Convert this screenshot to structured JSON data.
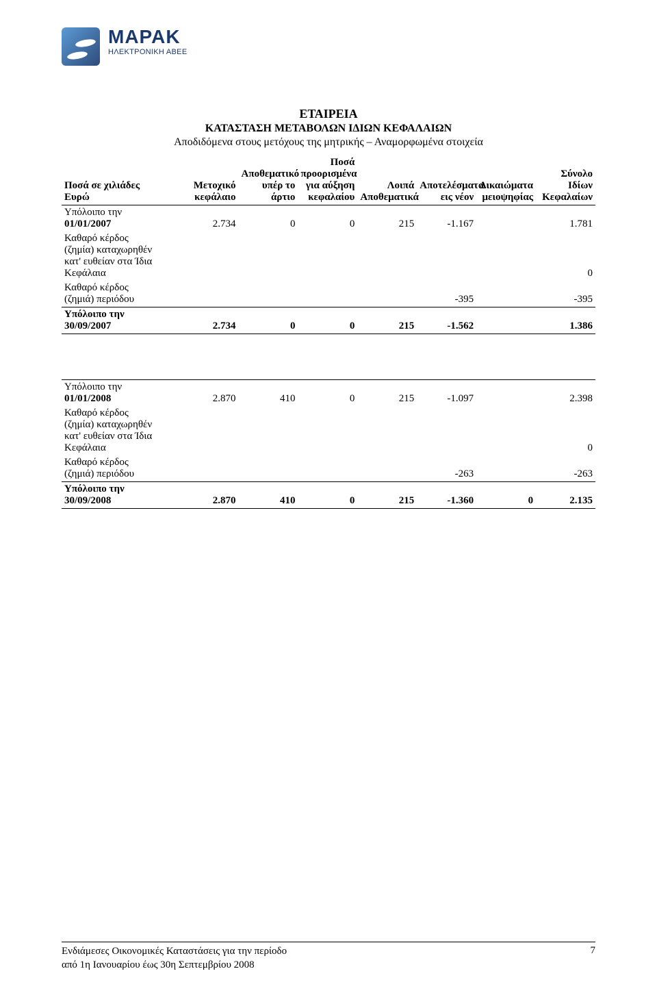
{
  "brand": {
    "title": "ΜΑΡΑΚ",
    "subtitle": "ΗΛΕΚΤΡΟΝΙΚΗ ΑΒΕΕ"
  },
  "doc": {
    "title": "ΕΤΑΙΡΕΙΑ",
    "subtitle": "ΚΑΤΑΣΤΑΣΗ ΜΕΤΑΒΟΛΩΝ ΙΔΙΩΝ ΚΕΦΑΛΑΙΩΝ",
    "subtitle2": "Αποδιδόμενα στους μετόχους της μητρικής – Αναμορφωμένα στοιχεία"
  },
  "columns": {
    "c0a": "Ποσά σε χιλιάδες",
    "c0b": "Ευρώ",
    "c1a": "Μετοχικό",
    "c1b": "κεφάλαιο",
    "c2a": "Αποθεματικό",
    "c2b": "υπέρ το",
    "c2c": "άρτιο",
    "c3a": "Ποσά",
    "c3b": "προορισμένα",
    "c3c": "για αύξηση",
    "c3d": "κεφαλαίου",
    "c4a": "Λοιπά",
    "c4b": "Αποθεματικά",
    "c5a": "Αποτελέσματα",
    "c5b": "εις νέον",
    "c6a": "Δικαιώματα",
    "c6b": "μειοψηφίας",
    "c7a": "Σύνολο",
    "c7b": "Ιδίων",
    "c7c": "Κεφαλαίων"
  },
  "section1": {
    "r1_label_a": "Υπόλοιπο την",
    "r1_label_b": "01/01/2007",
    "r1": {
      "c1": "2.734",
      "c2": "0",
      "c3": "0",
      "c4": "215",
      "c5": "-1.167",
      "c6": "",
      "c7": "1.781"
    },
    "r2_label_a": "Καθαρό κέρδος",
    "r2_label_b": "(ζημία) καταχωρηθέν",
    "r2_label_c": "κατ' ευθείαν στα Ίδια",
    "r2_label_d": "Κεφάλαια",
    "r2": {
      "c7": "0"
    },
    "r3_label_a": "Καθαρό κέρδος",
    "r3_label_b": "(ζημιά) περιόδου",
    "r3": {
      "c5": "-395",
      "c7": "-395"
    },
    "r4_label_a": "Υπόλοιπο την",
    "r4_label_b": "30/09/2007",
    "r4": {
      "c1": "2.734",
      "c2": "0",
      "c3": "0",
      "c4": "215",
      "c5": "-1.562",
      "c6": "",
      "c7": "1.386"
    }
  },
  "section2": {
    "r1_label_a": "Υπόλοιπο την",
    "r1_label_b": "01/01/2008",
    "r1": {
      "c1": "2.870",
      "c2": "410",
      "c3": "0",
      "c4": "215",
      "c5": "-1.097",
      "c6": "",
      "c7": "2.398"
    },
    "r2_label_a": "Καθαρό κέρδος",
    "r2_label_b": "(ζημία) καταχωρηθέν",
    "r2_label_c": "κατ' ευθείαν στα Ίδια",
    "r2_label_d": "Κεφάλαια",
    "r2": {
      "c7": "0"
    },
    "r3_label_a": "Καθαρό κέρδος",
    "r3_label_b": "(ζημιά) περιόδου",
    "r3": {
      "c5": "-263",
      "c7": "-263"
    },
    "r4_label_a": "Υπόλοιπο την",
    "r4_label_b": "30/09/2008",
    "r4": {
      "c1": "2.870",
      "c2": "410",
      "c3": "0",
      "c4": "215",
      "c5": "-1.360",
      "c6": "0",
      "c7": "2.135"
    }
  },
  "footer": {
    "line1": "Ενδιάμεσες Οικονομικές Καταστάσεις για την περίοδο",
    "line2": "από 1η Ιανουαρίου έως 30η Σεπτεμβρίου 2008",
    "page": "7"
  },
  "style": {
    "page_bg": "#ffffff",
    "text_color": "#000000",
    "brand_color": "#1a3a6d",
    "rule_color": "#000000",
    "body_font": "Times New Roman",
    "body_size_pt": 11,
    "title_size_pt": 13,
    "brand_title_size_pt": 21
  }
}
